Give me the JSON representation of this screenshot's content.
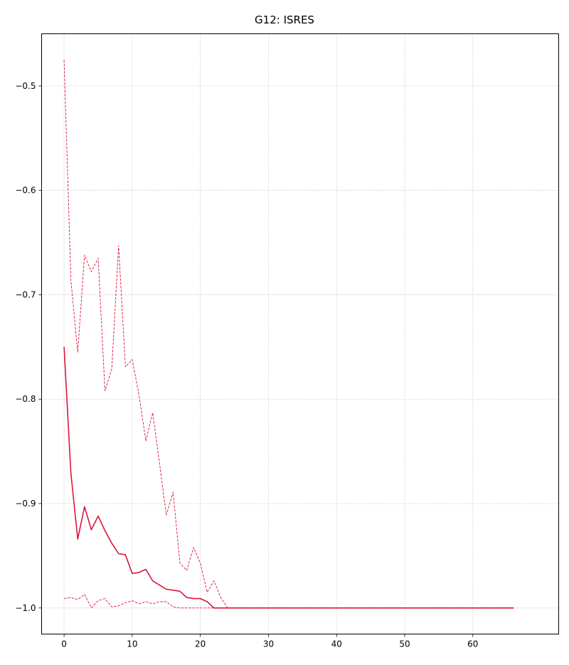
{
  "chart_data": {
    "type": "line",
    "title": "G12: ISRES",
    "xlabel": "",
    "ylabel": "",
    "xlim": [
      -3.3,
      72.6
    ],
    "ylim": [
      -1.025,
      -0.45
    ],
    "xticks": [
      0,
      10,
      20,
      30,
      40,
      50,
      60
    ],
    "yticks": [
      -1.0,
      -0.9,
      -0.8,
      -0.7,
      -0.6,
      -0.5
    ],
    "xtick_labels": [
      "0",
      "10",
      "20",
      "30",
      "40",
      "50",
      "60"
    ],
    "ytick_labels": [
      "−1.0",
      "−0.9",
      "−0.8",
      "−0.7",
      "−0.6",
      "−0.5"
    ],
    "grid": true,
    "grid_style": "dotted",
    "color": "#dc143c",
    "x": [
      0,
      1,
      2,
      3,
      4,
      5,
      6,
      7,
      8,
      9,
      10,
      11,
      12,
      13,
      14,
      15,
      16,
      17,
      18,
      19,
      20,
      21,
      22,
      23,
      24,
      25,
      26,
      27,
      28,
      29,
      30,
      31,
      32,
      33,
      34,
      35,
      36,
      37,
      38,
      39,
      40,
      41,
      42,
      43,
      44,
      45,
      46,
      47,
      48,
      49,
      50,
      51,
      52,
      53,
      54,
      55,
      56,
      57,
      58,
      59,
      60,
      61,
      62,
      63,
      64,
      65,
      66
    ],
    "series": [
      {
        "style": "solid",
        "values": [
          -0.75,
          -0.871,
          -0.934,
          -0.903,
          -0.925,
          -0.912,
          -0.926,
          -0.938,
          -0.948,
          -0.949,
          -0.967,
          -0.966,
          -0.963,
          -0.974,
          -0.978,
          -0.982,
          -0.983,
          -0.984,
          -0.99,
          -0.991,
          -0.991,
          -0.994,
          -1.0,
          -1.0,
          -1.0,
          -1.0,
          -1.0,
          -1.0,
          -1.0,
          -1.0,
          -1.0,
          -1.0,
          -1.0,
          -1.0,
          -1.0,
          -1.0,
          -1.0,
          -1.0,
          -1.0,
          -1.0,
          -1.0,
          -1.0,
          -1.0,
          -1.0,
          -1.0,
          -1.0,
          -1.0,
          -1.0,
          -1.0,
          -1.0,
          -1.0,
          -1.0,
          -1.0,
          -1.0,
          -1.0,
          -1.0,
          -1.0,
          -1.0,
          -1.0,
          -1.0,
          -1.0,
          -1.0,
          -1.0,
          -1.0,
          -1.0,
          -1.0,
          -1.0
        ]
      },
      {
        "style": "dashed",
        "values": [
          -0.475,
          -0.686,
          -0.755,
          -0.662,
          -0.678,
          -0.665,
          -0.792,
          -0.771,
          -0.653,
          -0.769,
          -0.762,
          -0.796,
          -0.84,
          -0.813,
          -0.861,
          -0.911,
          -0.889,
          -0.957,
          -0.964,
          -0.942,
          -0.957,
          -0.985,
          -0.974,
          -0.99,
          -1.0,
          -1.0,
          -1.0,
          -1.0,
          -1.0,
          -1.0,
          -1.0,
          -1.0,
          -1.0,
          -1.0,
          -1.0,
          -1.0,
          -1.0,
          -1.0,
          -1.0,
          -1.0,
          -1.0,
          -1.0,
          -1.0,
          -1.0,
          -1.0,
          -1.0,
          -1.0,
          -1.0,
          -1.0,
          -1.0,
          -1.0,
          -1.0,
          -1.0,
          -1.0,
          -1.0,
          -1.0,
          -1.0,
          -1.0,
          -1.0,
          -1.0,
          -1.0,
          -1.0,
          -1.0,
          -1.0,
          -1.0,
          -1.0,
          -1.0
        ]
      },
      {
        "style": "dashed",
        "values": [
          -0.991,
          -0.99,
          -0.992,
          -0.987,
          -1.0,
          -0.993,
          -0.991,
          -0.999,
          -0.998,
          -0.995,
          -0.993,
          -0.996,
          -0.994,
          -0.996,
          -0.994,
          -0.994,
          -0.999,
          -1.0,
          -1.0,
          -1.0,
          -1.0,
          -1.0,
          -1.0,
          -1.0,
          -1.0,
          -1.0,
          -1.0,
          -1.0,
          -1.0,
          -1.0,
          -1.0,
          -1.0,
          -1.0,
          -1.0,
          -1.0,
          -1.0,
          -1.0,
          -1.0,
          -1.0,
          -1.0,
          -1.0,
          -1.0,
          -1.0,
          -1.0,
          -1.0,
          -1.0,
          -1.0,
          -1.0,
          -1.0,
          -1.0,
          -1.0,
          -1.0,
          -1.0,
          -1.0,
          -1.0,
          -1.0,
          -1.0,
          -1.0,
          -1.0,
          -1.0,
          -1.0,
          -1.0,
          -1.0,
          -1.0,
          -1.0,
          -1.0,
          -1.0
        ]
      }
    ]
  }
}
